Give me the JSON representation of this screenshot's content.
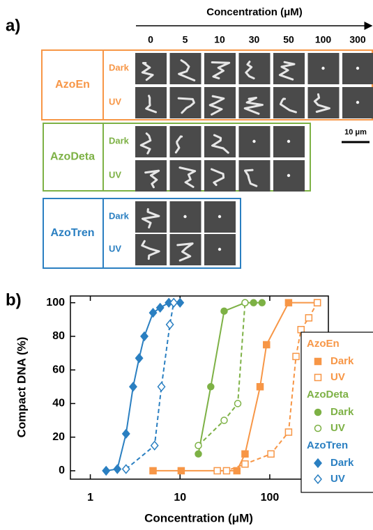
{
  "panel_a": {
    "label": "a)",
    "axis_title": "Concentration (μM)",
    "columns": [
      "0",
      "5",
      "10",
      "30",
      "50",
      "100",
      "300"
    ],
    "scale_bar": "10 μm",
    "samples": [
      {
        "name": "AzoEn",
        "color": "#f79646",
        "rows": [
          "Dark",
          "UV"
        ]
      },
      {
        "name": "AzoDeta",
        "color": "#7db145",
        "rows": [
          "Dark",
          "UV"
        ]
      },
      {
        "name": "AzoTren",
        "color": "#2a7fc1",
        "rows": [
          "Dark",
          "UV"
        ]
      }
    ]
  },
  "chart_data": {
    "type": "scatter",
    "panel_label": "b)",
    "xlabel": "Concentration (μM)",
    "ylabel": "Compact DNA (%)",
    "xscale": "log",
    "xlim": [
      0.6,
      450
    ],
    "ylim": [
      -5,
      104
    ],
    "xticks": [
      1,
      10,
      100
    ],
    "yticks": [
      0,
      20,
      40,
      60,
      80,
      100
    ],
    "legend": "right",
    "groups": [
      {
        "name": "AzoEn",
        "color": "#f79646",
        "marker": "square",
        "series": [
          {
            "name": "Dark",
            "filled": true,
            "dashed": false,
            "x": [
              5,
              10.3,
              43,
              53,
              78,
              92,
              162,
              339
            ],
            "values": [
              0,
              0,
              0,
              10,
              50,
              75,
              100,
              100
            ]
          },
          {
            "name": "UV",
            "filled": false,
            "dashed": true,
            "x": [
              26,
              33,
              53,
              103,
              162,
              196,
              223,
              272,
              339
            ],
            "values": [
              0,
              0,
              4,
              10,
              23,
              68,
              84,
              91,
              100
            ]
          }
        ]
      },
      {
        "name": "AzoDeta",
        "color": "#7db145",
        "marker": "circle",
        "series": [
          {
            "name": "Dark",
            "filled": true,
            "dashed": false,
            "x": [
              16,
              22,
              31,
              53,
              66,
              82
            ],
            "values": [
              10,
              50,
              95,
              100,
              100,
              100
            ]
          },
          {
            "name": "UV",
            "filled": false,
            "dashed": true,
            "x": [
              16,
              31,
              44,
              53
            ],
            "values": [
              15,
              30,
              40,
              100
            ]
          }
        ]
      },
      {
        "name": "AzoTren",
        "color": "#2a7fc1",
        "marker": "diamond",
        "series": [
          {
            "name": "Dark",
            "filled": true,
            "dashed": false,
            "x": [
              1.5,
              2,
              2.5,
              3,
              3.5,
              4,
              5,
              6,
              7.5,
              10
            ],
            "values": [
              0,
              1,
              22,
              50,
              67,
              80,
              94,
              97,
              100,
              100
            ]
          },
          {
            "name": "UV",
            "filled": false,
            "dashed": true,
            "x": [
              2.5,
              5.2,
              6.2,
              7.7,
              8.5
            ],
            "values": [
              1,
              15,
              50,
              87,
              100
            ]
          }
        ]
      }
    ]
  }
}
